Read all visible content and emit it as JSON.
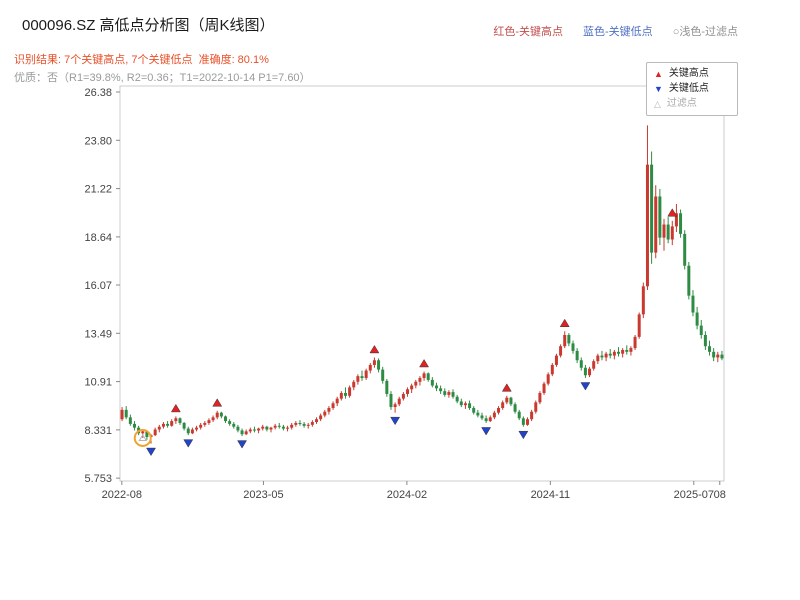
{
  "header": {
    "title": "000096.SZ 高低点分析图（周K线图）",
    "title_color": "#1a1a1a",
    "result_line": "识别结果: 7个关键高点, 7个关键低点  准确度: 80.1%",
    "result_color": "#e8502a",
    "quality_line": "优质：否（R1=39.8%, R2=0.36；T1=2022-10-14 P1=7.60）",
    "quality_color": "#9a9a9a",
    "legend": [
      {
        "label": "红色-关键高点",
        "color": "#c0504d"
      },
      {
        "label": "蓝色-关键低点",
        "color": "#4f6fc0"
      },
      {
        "label": "○浅色-过滤点",
        "color": "#8f8f8f"
      }
    ]
  },
  "legend_box": {
    "items": [
      {
        "icon": "▲",
        "label": "关键高点",
        "icon_color": "#e02222",
        "label_color": "#222222"
      },
      {
        "icon": "▼",
        "label": "关键低点",
        "icon_color": "#2244cc",
        "label_color": "#222222"
      },
      {
        "icon": "△",
        "label": "过滤点",
        "icon_color": "#b5b5b5",
        "label_color": "#aaaaaa"
      }
    ]
  },
  "chart_data": {
    "type": "candlestick",
    "title": "000096.SZ 高低点分析图（周K线图）",
    "period": "weekly",
    "ylim": [
      5.6,
      26.7
    ],
    "y_ticks": [
      {
        "v": 5.753,
        "label": "5.753"
      },
      {
        "v": 8.331,
        "label": "8.331"
      },
      {
        "v": 10.91,
        "label": "10.91"
      },
      {
        "v": 13.49,
        "label": "13.49"
      },
      {
        "v": 16.07,
        "label": "16.07"
      },
      {
        "v": 18.64,
        "label": "18.64"
      },
      {
        "v": 21.22,
        "label": "21.22"
      },
      {
        "v": 23.8,
        "label": "23.80"
      },
      {
        "v": 26.38,
        "label": "26.38"
      }
    ],
    "x_ticks": [
      {
        "f": 0.003,
        "label": "2022-08"
      },
      {
        "f": 0.2375,
        "label": "2023-05"
      },
      {
        "f": 0.475,
        "label": "2024-02"
      },
      {
        "f": 0.7125,
        "label": "2024-11"
      },
      {
        "f": 0.95,
        "label": "2025-07"
      },
      {
        "f": 0.993,
        "label": "08"
      }
    ],
    "candles": [
      [
        8.9,
        9.55,
        8.8,
        9.4
      ],
      [
        9.4,
        9.6,
        8.9,
        9.0
      ],
      [
        9.0,
        9.15,
        8.55,
        8.65
      ],
      [
        8.65,
        8.8,
        8.3,
        8.45
      ],
      [
        8.45,
        8.55,
        8.05,
        8.15
      ],
      [
        8.15,
        8.35,
        7.9,
        8.25
      ],
      [
        8.25,
        8.3,
        7.8,
        7.95
      ],
      [
        7.95,
        8.1,
        7.6,
        8.05
      ],
      [
        8.05,
        8.45,
        8.0,
        8.35
      ],
      [
        8.35,
        8.6,
        8.2,
        8.5
      ],
      [
        8.5,
        8.75,
        8.4,
        8.65
      ],
      [
        8.65,
        8.8,
        8.45,
        8.55
      ],
      [
        8.55,
        8.9,
        8.5,
        8.8
      ],
      [
        8.8,
        9.05,
        8.65,
        8.95
      ],
      [
        8.95,
        9.0,
        8.6,
        8.7
      ],
      [
        8.7,
        8.75,
        8.3,
        8.4
      ],
      [
        8.4,
        8.5,
        8.05,
        8.15
      ],
      [
        8.15,
        8.45,
        8.1,
        8.35
      ],
      [
        8.35,
        8.55,
        8.25,
        8.45
      ],
      [
        8.45,
        8.7,
        8.35,
        8.6
      ],
      [
        8.6,
        8.8,
        8.5,
        8.7
      ],
      [
        8.7,
        8.95,
        8.6,
        8.85
      ],
      [
        8.85,
        9.1,
        8.75,
        9.0
      ],
      [
        9.0,
        9.35,
        8.9,
        9.25
      ],
      [
        9.25,
        9.3,
        8.95,
        9.05
      ],
      [
        9.05,
        9.1,
        8.7,
        8.8
      ],
      [
        8.8,
        8.9,
        8.55,
        8.65
      ],
      [
        8.65,
        8.75,
        8.4,
        8.5
      ],
      [
        8.5,
        8.6,
        8.2,
        8.3
      ],
      [
        8.3,
        8.4,
        8.0,
        8.1
      ],
      [
        8.1,
        8.35,
        8.05,
        8.25
      ],
      [
        8.25,
        8.45,
        8.15,
        8.35
      ],
      [
        8.35,
        8.5,
        8.2,
        8.3
      ],
      [
        8.3,
        8.45,
        8.15,
        8.4
      ],
      [
        8.4,
        8.6,
        8.3,
        8.5
      ],
      [
        8.5,
        8.55,
        8.25,
        8.35
      ],
      [
        8.35,
        8.5,
        8.2,
        8.45
      ],
      [
        8.45,
        8.65,
        8.35,
        8.55
      ],
      [
        8.55,
        8.7,
        8.4,
        8.5
      ],
      [
        8.5,
        8.6,
        8.3,
        8.4
      ],
      [
        8.4,
        8.55,
        8.25,
        8.45
      ],
      [
        8.45,
        8.7,
        8.35,
        8.6
      ],
      [
        8.6,
        8.8,
        8.5,
        8.7
      ],
      [
        8.7,
        8.85,
        8.55,
        8.65
      ],
      [
        8.65,
        8.75,
        8.45,
        8.55
      ],
      [
        8.55,
        8.7,
        8.4,
        8.6
      ],
      [
        8.6,
        8.85,
        8.5,
        8.75
      ],
      [
        8.75,
        9.0,
        8.65,
        8.9
      ],
      [
        8.9,
        9.2,
        8.8,
        9.1
      ],
      [
        9.1,
        9.4,
        9.0,
        9.3
      ],
      [
        9.3,
        9.6,
        9.15,
        9.5
      ],
      [
        9.5,
        9.85,
        9.4,
        9.75
      ],
      [
        9.75,
        10.1,
        9.6,
        10.0
      ],
      [
        10.0,
        10.4,
        9.9,
        10.3
      ],
      [
        10.3,
        10.6,
        10.0,
        10.15
      ],
      [
        10.15,
        10.7,
        10.05,
        10.6
      ],
      [
        10.6,
        11.0,
        10.45,
        10.9
      ],
      [
        10.9,
        11.3,
        10.75,
        11.2
      ],
      [
        11.2,
        11.5,
        10.95,
        11.1
      ],
      [
        11.1,
        11.6,
        11.0,
        11.5
      ],
      [
        11.5,
        11.9,
        11.35,
        11.8
      ],
      [
        11.8,
        12.2,
        11.65,
        12.05
      ],
      [
        12.05,
        12.15,
        11.4,
        11.55
      ],
      [
        11.55,
        11.7,
        10.8,
        10.95
      ],
      [
        10.95,
        11.05,
        10.1,
        10.25
      ],
      [
        10.25,
        10.4,
        9.4,
        9.55
      ],
      [
        9.55,
        9.8,
        9.25,
        9.7
      ],
      [
        9.7,
        10.1,
        9.6,
        10.0
      ],
      [
        10.0,
        10.35,
        9.9,
        10.25
      ],
      [
        10.25,
        10.6,
        10.1,
        10.5
      ],
      [
        10.5,
        10.8,
        10.3,
        10.7
      ],
      [
        10.7,
        11.0,
        10.55,
        10.9
      ],
      [
        10.9,
        11.2,
        10.7,
        11.1
      ],
      [
        11.1,
        11.45,
        10.95,
        11.35
      ],
      [
        11.35,
        11.4,
        10.9,
        11.0
      ],
      [
        11.0,
        11.15,
        10.6,
        10.7
      ],
      [
        10.7,
        10.85,
        10.4,
        10.55
      ],
      [
        10.55,
        10.7,
        10.25,
        10.4
      ],
      [
        10.4,
        10.55,
        10.1,
        10.2
      ],
      [
        10.2,
        10.45,
        10.05,
        10.35
      ],
      [
        10.35,
        10.5,
        10.0,
        10.1
      ],
      [
        10.1,
        10.2,
        9.75,
        9.85
      ],
      [
        9.85,
        10.0,
        9.55,
        9.65
      ],
      [
        9.65,
        9.85,
        9.45,
        9.75
      ],
      [
        9.75,
        9.9,
        9.4,
        9.5
      ],
      [
        9.5,
        9.6,
        9.15,
        9.25
      ],
      [
        9.25,
        9.4,
        9.0,
        9.1
      ],
      [
        9.1,
        9.25,
        8.85,
        8.95
      ],
      [
        8.95,
        9.1,
        8.7,
        8.8
      ],
      [
        8.8,
        9.1,
        8.75,
        9.0
      ],
      [
        9.0,
        9.35,
        8.9,
        9.25
      ],
      [
        9.25,
        9.6,
        9.15,
        9.5
      ],
      [
        9.5,
        9.9,
        9.4,
        9.8
      ],
      [
        9.8,
        10.15,
        9.7,
        10.05
      ],
      [
        10.05,
        10.1,
        9.6,
        9.7
      ],
      [
        9.7,
        9.8,
        9.2,
        9.3
      ],
      [
        9.3,
        9.4,
        8.85,
        8.95
      ],
      [
        8.95,
        9.05,
        8.5,
        8.6
      ],
      [
        8.6,
        9.0,
        8.55,
        8.9
      ],
      [
        8.9,
        9.4,
        8.8,
        9.3
      ],
      [
        9.3,
        9.9,
        9.2,
        9.8
      ],
      [
        9.8,
        10.4,
        9.7,
        10.3
      ],
      [
        10.3,
        10.9,
        10.2,
        10.8
      ],
      [
        10.8,
        11.4,
        10.7,
        11.3
      ],
      [
        11.3,
        11.9,
        11.2,
        11.8
      ],
      [
        11.8,
        12.4,
        11.7,
        12.3
      ],
      [
        12.3,
        12.9,
        12.2,
        12.8
      ],
      [
        12.8,
        13.6,
        12.7,
        13.4
      ],
      [
        13.4,
        13.5,
        12.8,
        12.95
      ],
      [
        12.95,
        13.1,
        12.4,
        12.55
      ],
      [
        12.55,
        12.7,
        11.9,
        12.05
      ],
      [
        12.05,
        12.2,
        11.5,
        11.65
      ],
      [
        11.65,
        11.8,
        11.1,
        11.25
      ],
      [
        11.25,
        11.7,
        11.15,
        11.6
      ],
      [
        11.6,
        12.1,
        11.5,
        12.0
      ],
      [
        12.0,
        12.4,
        11.85,
        12.3
      ],
      [
        12.3,
        12.55,
        12.05,
        12.2
      ],
      [
        12.2,
        12.5,
        12.0,
        12.4
      ],
      [
        12.4,
        12.65,
        12.15,
        12.3
      ],
      [
        12.3,
        12.6,
        12.1,
        12.5
      ],
      [
        12.5,
        12.75,
        12.25,
        12.4
      ],
      [
        12.4,
        12.7,
        12.2,
        12.6
      ],
      [
        12.6,
        12.85,
        12.35,
        12.5
      ],
      [
        12.5,
        12.8,
        12.3,
        12.7
      ],
      [
        12.7,
        13.4,
        12.6,
        13.3
      ],
      [
        13.3,
        14.6,
        13.2,
        14.5
      ],
      [
        14.5,
        16.2,
        14.3,
        16.0
      ],
      [
        16.0,
        24.6,
        15.8,
        22.5
      ],
      [
        22.5,
        23.2,
        17.2,
        17.8
      ],
      [
        17.8,
        21.4,
        17.5,
        20.8
      ],
      [
        20.8,
        21.2,
        18.2,
        18.6
      ],
      [
        18.6,
        19.6,
        17.9,
        19.3
      ],
      [
        19.3,
        19.7,
        18.3,
        18.5
      ],
      [
        18.5,
        19.5,
        18.2,
        19.2
      ],
      [
        19.2,
        20.4,
        18.9,
        19.9
      ],
      [
        19.9,
        20.1,
        18.6,
        18.8
      ],
      [
        18.8,
        19.0,
        16.9,
        17.1
      ],
      [
        17.1,
        17.3,
        15.3,
        15.5
      ],
      [
        15.5,
        15.8,
        14.4,
        14.6
      ],
      [
        14.6,
        14.9,
        13.7,
        13.9
      ],
      [
        13.9,
        14.2,
        13.2,
        13.4
      ],
      [
        13.4,
        13.6,
        12.6,
        12.8
      ],
      [
        12.8,
        13.1,
        12.3,
        12.5
      ],
      [
        12.5,
        12.7,
        12.0,
        12.2
      ],
      [
        12.2,
        12.5,
        11.95,
        12.35
      ],
      [
        12.35,
        12.55,
        12.05,
        12.15
      ]
    ],
    "key_high_indices": [
      13,
      23,
      61,
      73,
      93,
      107,
      133
    ],
    "key_low_indices": [
      7,
      16,
      29,
      66,
      88,
      97,
      112
    ],
    "filtered_indices": [
      5
    ],
    "annotations": {
      "T1": "2022-10-14",
      "P1": "7.60"
    },
    "colors": {
      "up": "#c9392f",
      "down": "#2e8b44",
      "key_high": "#e02222",
      "key_low": "#2244cc",
      "filtered_ring": "#f0a330",
      "filtered_tri": "#b5b5b5",
      "axis": "#cccccc",
      "tick": "#888888",
      "tick_text": "#444444"
    }
  }
}
